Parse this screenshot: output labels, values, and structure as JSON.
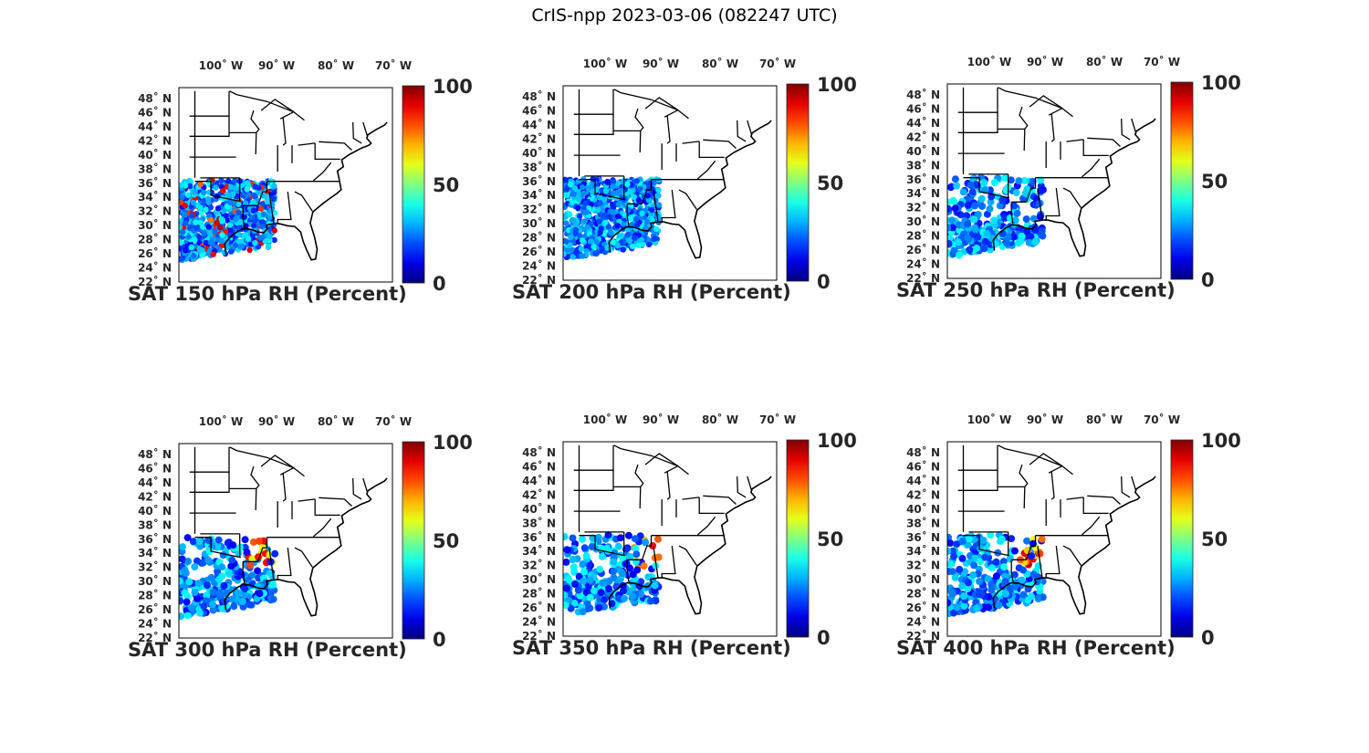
{
  "figure": {
    "title": "CrIS-npp 2023-03-06 (082247 UTC)"
  },
  "lon_ticks": [
    "100˚ W",
    "90˚ W",
    "80˚ W",
    "70˚ W"
  ],
  "lat_ticks": [
    "48˚ N",
    "46˚ N",
    "44˚ N",
    "42˚ N",
    "40˚ N",
    "38˚ N",
    "36˚ N",
    "34˚ N",
    "32˚ N",
    "30˚ N",
    "28˚ N",
    "26˚ N",
    "24˚ N",
    "22˚ N"
  ],
  "colorbar": {
    "ticks": [
      "100",
      "50",
      "0"
    ],
    "range": [
      0,
      100
    ],
    "colormap": "jet"
  },
  "colors": {
    "coast": "#000000",
    "frame": "#000000",
    "low": "#00008f",
    "high": "#800000"
  },
  "panels": [
    {
      "title": "SAT 150 hPa RH (Percent)",
      "level_hpa": 150
    },
    {
      "title": "SAT 200 hPa RH (Percent)",
      "level_hpa": 200
    },
    {
      "title": "SAT 250 hPa RH (Percent)",
      "level_hpa": 250
    },
    {
      "title": "SAT 300 hPa RH (Percent)",
      "level_hpa": 300
    },
    {
      "title": "SAT 350 hPa RH (Percent)",
      "level_hpa": 350
    },
    {
      "title": "SAT 400 hPa RH (Percent)",
      "level_hpa": 400
    }
  ]
}
